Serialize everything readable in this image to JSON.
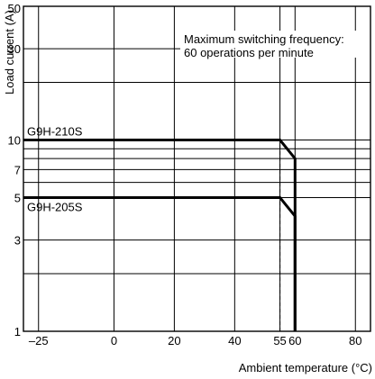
{
  "chart_data": {
    "type": "line",
    "title": "",
    "xlabel": "Ambient temperature (°C)",
    "ylabel": "Load current (A)",
    "xlim": [
      -30,
      85
    ],
    "ylim": [
      1,
      50
    ],
    "y_scale": "log",
    "grid": true,
    "x_ticks": [
      -25,
      0,
      20,
      40,
      55,
      60,
      80
    ],
    "x_tick_labels": [
      "–25",
      "0",
      "20",
      "40",
      "55",
      "60",
      "80"
    ],
    "y_ticks": [
      1,
      3,
      5,
      7,
      10,
      30,
      50
    ],
    "y_tick_labels": [
      "1",
      "3",
      "5",
      "7",
      "10",
      "30",
      "50"
    ],
    "y_minor_gridlines": [
      2,
      6,
      8,
      9,
      20
    ],
    "series": [
      {
        "name": "G9H-210S",
        "points": [
          [
            -30,
            10
          ],
          [
            55,
            10
          ],
          [
            60,
            8
          ],
          [
            60,
            1
          ]
        ]
      },
      {
        "name": "G9H-205S",
        "points": [
          [
            -30,
            5
          ],
          [
            55,
            5
          ],
          [
            60,
            4
          ],
          [
            60,
            1
          ]
        ]
      }
    ],
    "reference_lines": [
      {
        "orientation": "vertical",
        "x": 55,
        "y_range": [
          1,
          10
        ],
        "style": "dashed"
      }
    ],
    "annotations": [
      {
        "text": "Maximum switching frequency:"
      },
      {
        "text": "60 operations per minute"
      }
    ]
  }
}
